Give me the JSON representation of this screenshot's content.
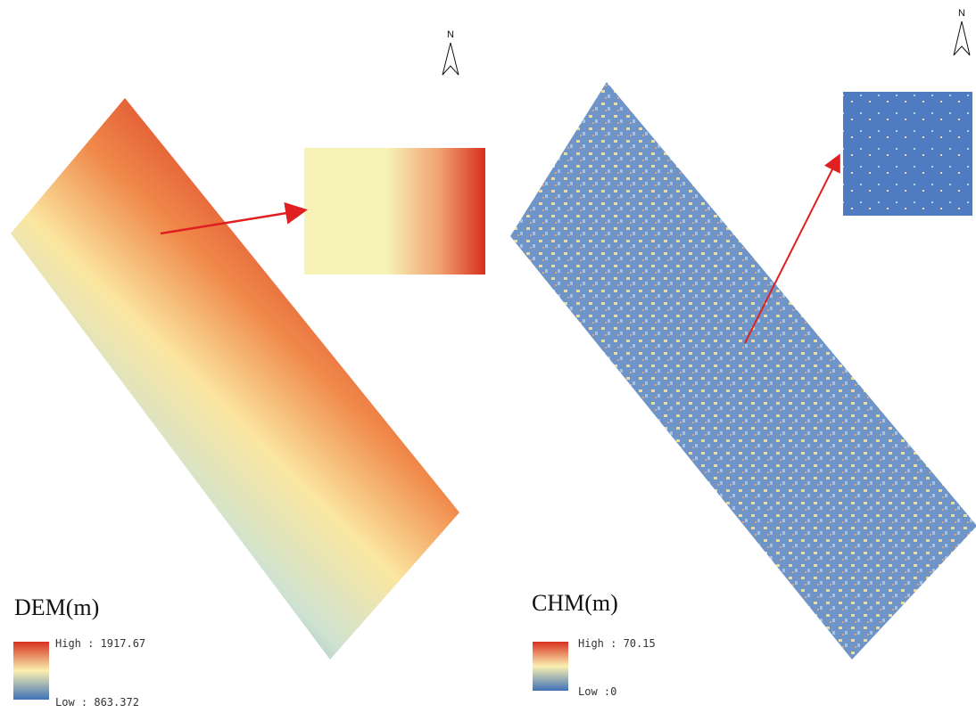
{
  "panels": [
    {
      "north": "N",
      "title": "DEM(m)",
      "legend": {
        "high": "High : 1917.67",
        "low": "Low : 863.372"
      }
    },
    {
      "north": "N",
      "title": "CHM(m)",
      "legend": {
        "high": "High : 70.15",
        "low": "Low :0"
      }
    }
  ]
}
